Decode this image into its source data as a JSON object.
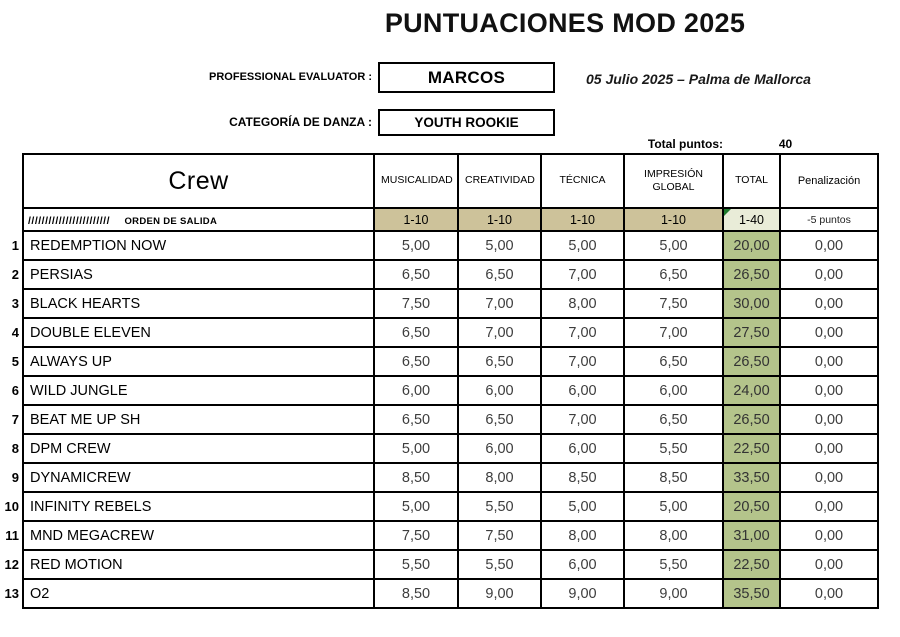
{
  "header": {
    "title": "PUNTUACIONES MOD 2025",
    "evaluator_label": "PROFESSIONAL EVALUATOR :",
    "evaluator_value": "MARCOS",
    "event_date": "05 Julio 2025 – Palma de Mallorca",
    "category_label": "CATEGORÍA DE DANZA :",
    "category_value": "YOUTH ROOKIE",
    "total_points_label": "Total puntos:",
    "total_points_value": "40"
  },
  "table": {
    "crew_header": "Crew",
    "columns": [
      "MUSICALIDAD",
      "CREATIVIDAD",
      "TÉCNICA",
      "IMPRESIÓN GLOBAL",
      "TOTAL",
      "Penalización"
    ],
    "subheader": {
      "order_slashes": "////////////////////////",
      "order_label": "ORDEN DE SALIDA",
      "ranges": [
        "1-10",
        "1-10",
        "1-10",
        "1-10"
      ],
      "total_range": "1-40",
      "penalty_range": "-5 puntos"
    },
    "rows": [
      {
        "num": "1",
        "crew": "REDEMPTION NOW",
        "scores": [
          "5,00",
          "5,00",
          "5,00",
          "5,00"
        ],
        "total": "20,00",
        "penalty": "0,00"
      },
      {
        "num": "2",
        "crew": "PERSIAS",
        "scores": [
          "6,50",
          "6,50",
          "7,00",
          "6,50"
        ],
        "total": "26,50",
        "penalty": "0,00"
      },
      {
        "num": "3",
        "crew": "BLACK HEARTS",
        "scores": [
          "7,50",
          "7,00",
          "8,00",
          "7,50"
        ],
        "total": "30,00",
        "penalty": "0,00"
      },
      {
        "num": "4",
        "crew": "DOUBLE ELEVEN",
        "scores": [
          "6,50",
          "7,00",
          "7,00",
          "7,00"
        ],
        "total": "27,50",
        "penalty": "0,00"
      },
      {
        "num": "5",
        "crew": "ALWAYS UP",
        "scores": [
          "6,50",
          "6,50",
          "7,00",
          "6,50"
        ],
        "total": "26,50",
        "penalty": "0,00"
      },
      {
        "num": "6",
        "crew": "WILD JUNGLE",
        "scores": [
          "6,00",
          "6,00",
          "6,00",
          "6,00"
        ],
        "total": "24,00",
        "penalty": "0,00"
      },
      {
        "num": "7",
        "crew": "BEAT ME UP SH",
        "scores": [
          "6,50",
          "6,50",
          "7,00",
          "6,50"
        ],
        "total": "26,50",
        "penalty": "0,00"
      },
      {
        "num": "8",
        "crew": "DPM CREW",
        "scores": [
          "5,00",
          "6,00",
          "6,00",
          "5,50"
        ],
        "total": "22,50",
        "penalty": "0,00"
      },
      {
        "num": "9",
        "crew": "DYNAMICREW",
        "scores": [
          "8,50",
          "8,00",
          "8,50",
          "8,50"
        ],
        "total": "33,50",
        "penalty": "0,00"
      },
      {
        "num": "10",
        "crew": "INFINITY REBELS",
        "scores": [
          "5,00",
          "5,50",
          "5,00",
          "5,00"
        ],
        "total": "20,50",
        "penalty": "0,00"
      },
      {
        "num": "11",
        "crew": "MND MEGACREW",
        "scores": [
          "7,50",
          "7,50",
          "8,00",
          "8,00"
        ],
        "total": "31,00",
        "penalty": "0,00"
      },
      {
        "num": "12",
        "crew": "RED MOTION",
        "scores": [
          "5,50",
          "5,50",
          "6,00",
          "5,50"
        ],
        "total": "22,50",
        "penalty": "0,00"
      },
      {
        "num": "13",
        "crew": "O2",
        "scores": [
          "8,50",
          "9,00",
          "9,00",
          "9,00"
        ],
        "total": "35,50",
        "penalty": "0,00"
      }
    ]
  },
  "colors": {
    "range_tan": "#cdc29a",
    "total_green": "#b4c48b",
    "total_range_pale": "#e9ecd8",
    "corner_triangle_green": "#1f7a2d"
  }
}
